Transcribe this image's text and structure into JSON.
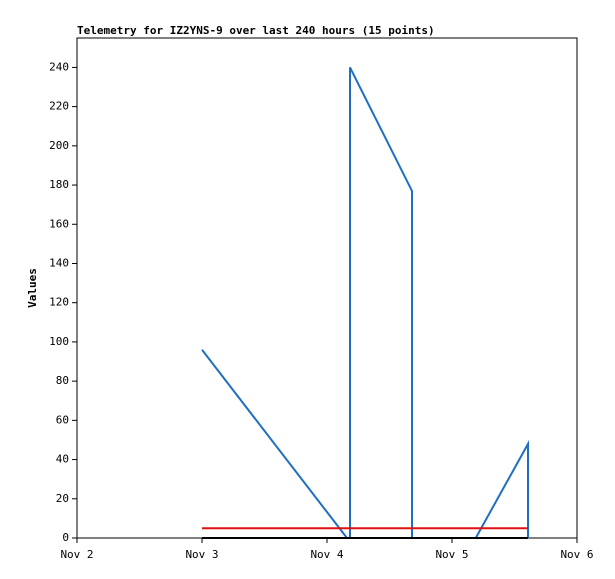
{
  "chart_data": {
    "type": "line",
    "title": "Telemetry for IZ2YNS-9 over last 240 hours (15 points)",
    "y_label": "Values",
    "xlim": [
      0,
      4
    ],
    "xticks": [
      {
        "value": 0,
        "label": "Nov 2"
      },
      {
        "value": 1,
        "label": "Nov 3"
      },
      {
        "value": 2,
        "label": "Nov 4"
      },
      {
        "value": 3,
        "label": "Nov 5"
      },
      {
        "value": 4,
        "label": "Nov 6"
      }
    ],
    "ylim": [
      0,
      255
    ],
    "yticks": [
      0,
      20,
      40,
      60,
      80,
      100,
      120,
      140,
      160,
      180,
      200,
      220,
      240
    ],
    "series": [
      {
        "color": "#1f6fbf",
        "x": [
          1.0,
          2.16,
          2.184,
          2.184,
          2.68,
          2.68,
          3.19,
          3.608,
          3.608
        ],
        "values": [
          96,
          0,
          0,
          240,
          177,
          0,
          0,
          48,
          0
        ]
      },
      {
        "color": "#e01010",
        "x": [
          1.0,
          3.608
        ],
        "values": [
          5,
          5
        ]
      },
      {
        "color": "#000000",
        "x": [
          1.0,
          3.608
        ],
        "values": [
          0,
          0
        ]
      }
    ]
  }
}
